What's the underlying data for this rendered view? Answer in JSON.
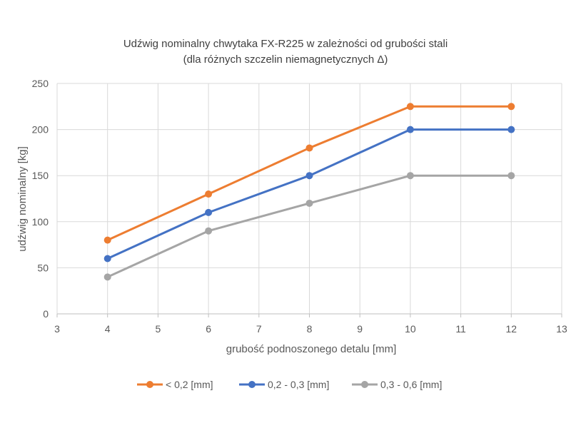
{
  "chart_data": {
    "type": "line",
    "title": "Udźwig nominalny chwytaka FX-R225 w zależności od grubości stali",
    "subtitle": "(dla różnych szczelin niemagnetycznych Δ)",
    "xlabel": "grubość podnoszonego detalu [mm]",
    "ylabel": "udźwig nominalny [kg]",
    "x_ticks": [
      "3",
      "4",
      "5",
      "6",
      "7",
      "8",
      "9",
      "10",
      "11",
      "12",
      "13"
    ],
    "y_ticks": [
      "0",
      "50",
      "100",
      "150",
      "200",
      "250"
    ],
    "ylim": [
      0,
      250
    ],
    "grid": true,
    "legend_position": "bottom",
    "series": [
      {
        "name": "< 0,2 [mm]",
        "color": "#ED7D31",
        "points": [
          {
            "x": 4,
            "y": 80
          },
          {
            "x": 6,
            "y": 130
          },
          {
            "x": 8,
            "y": 180
          },
          {
            "x": 10,
            "y": 225
          },
          {
            "x": 12,
            "y": 225
          }
        ]
      },
      {
        "name": "0,2 - 0,3 [mm]",
        "color": "#4472C4",
        "points": [
          {
            "x": 4,
            "y": 60
          },
          {
            "x": 6,
            "y": 110
          },
          {
            "x": 8,
            "y": 150
          },
          {
            "x": 10,
            "y": 200
          },
          {
            "x": 12,
            "y": 200
          }
        ]
      },
      {
        "name": "0,3 - 0,6 [mm]",
        "color": "#A5A5A5",
        "points": [
          {
            "x": 4,
            "y": 40
          },
          {
            "x": 6,
            "y": 90
          },
          {
            "x": 8,
            "y": 120
          },
          {
            "x": 10,
            "y": 150
          },
          {
            "x": 12,
            "y": 150
          }
        ]
      }
    ]
  }
}
